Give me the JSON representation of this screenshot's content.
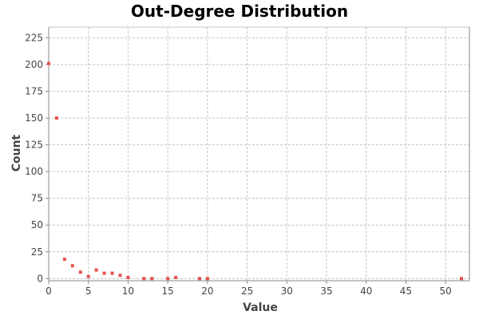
{
  "chart_data": {
    "type": "scatter",
    "title": "Out-Degree Distribution",
    "xlabel": "Value",
    "ylabel": "Count",
    "xlim": [
      0,
      53
    ],
    "ylim": [
      -2,
      235
    ],
    "xticks": [
      0,
      5,
      10,
      15,
      20,
      25,
      30,
      35,
      40,
      45,
      50
    ],
    "yticks": [
      0,
      25,
      50,
      75,
      100,
      125,
      150,
      175,
      200,
      225
    ],
    "grid": true,
    "marker_color": "#e8504e",
    "series": [
      {
        "x": [
          0,
          1,
          2,
          3,
          4,
          5,
          6,
          7,
          8,
          9,
          10,
          12,
          13,
          15,
          16,
          19,
          20,
          52
        ],
        "y": [
          201,
          150,
          18,
          12,
          6,
          2,
          8,
          5,
          5,
          3,
          1,
          0,
          0,
          0,
          1,
          0,
          0,
          0
        ]
      }
    ]
  }
}
